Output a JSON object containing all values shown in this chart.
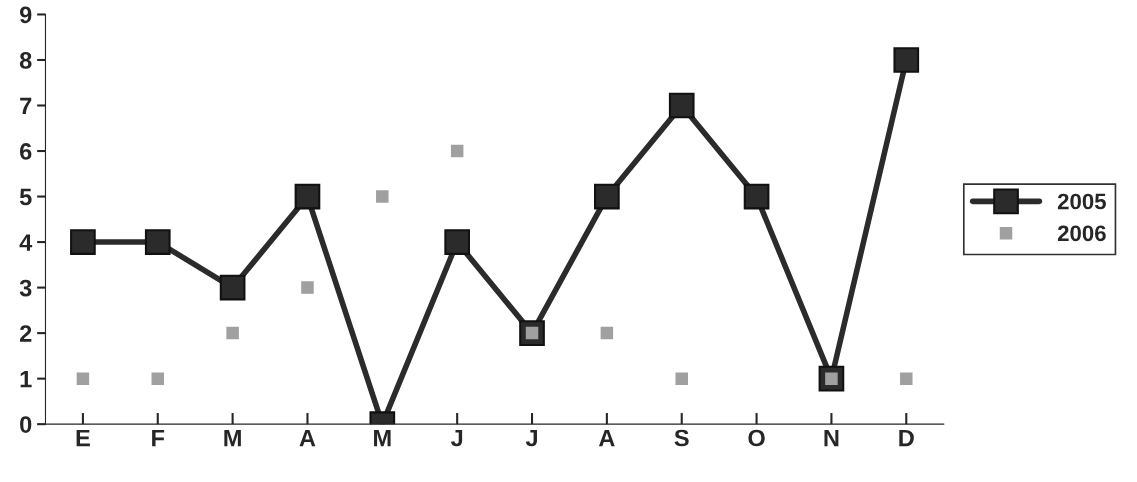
{
  "chart_data": {
    "type": "line",
    "categories": [
      "E",
      "F",
      "M",
      "A",
      "M",
      "J",
      "J",
      "A",
      "S",
      "O",
      "N",
      "D"
    ],
    "series": [
      {
        "name": "2005",
        "color": "#2b2b2b",
        "values": [
          4,
          4,
          3,
          5,
          0,
          4,
          2,
          5,
          7,
          5,
          1,
          8
        ],
        "marker": "square",
        "line_style": "solid"
      },
      {
        "name": "2006",
        "type": "scatter",
        "color": "#a0a0a0",
        "values": [
          1,
          1,
          2,
          3,
          5,
          6,
          2,
          2,
          1,
          null,
          1,
          1
        ],
        "marker": "square"
      }
    ],
    "ylim": [
      0,
      9
    ],
    "yticks": [
      0,
      1,
      2,
      3,
      4,
      5,
      6,
      7,
      8,
      9
    ],
    "grid": false,
    "legend": "right"
  }
}
